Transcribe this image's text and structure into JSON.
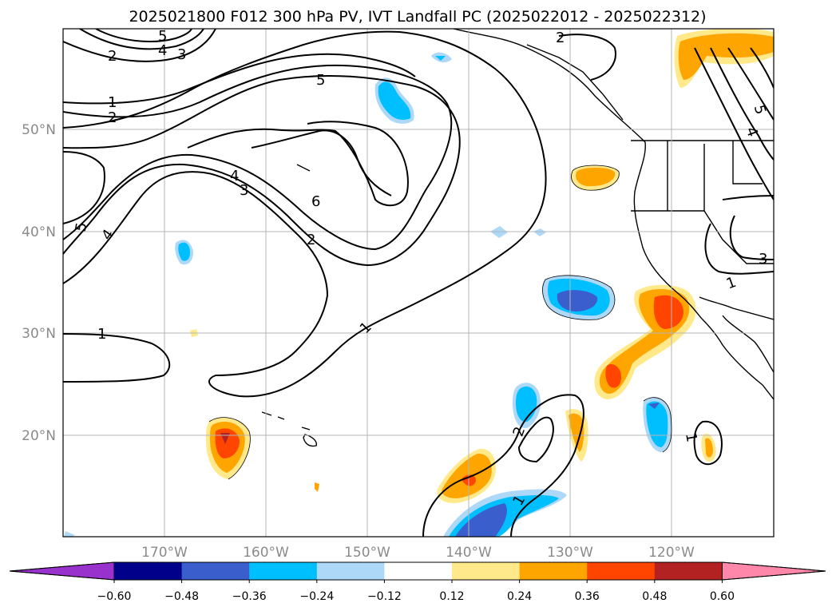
{
  "title": "2025021800 F012 300 hPa PV, IVT Landfall PC (2025022012 - 2025022312)",
  "axes": {
    "lon_labels": [
      "170°W",
      "160°W",
      "150°W",
      "140°W",
      "130°W",
      "120°W"
    ],
    "lat_labels": [
      "50°N",
      "40°N",
      "30°N",
      "20°N"
    ]
  },
  "colorbar": {
    "ticks": [
      "−0.60",
      "−0.48",
      "−0.36",
      "−0.24",
      "−0.12",
      "0.12",
      "0.24",
      "0.36",
      "0.48",
      "0.60"
    ],
    "colors": [
      "#9932cc",
      "#00008b",
      "#3a5fcd",
      "#00bfff",
      "#add8f8",
      "#ffffff",
      "#ffe98a",
      "#ffa500",
      "#ff4500",
      "#b22222",
      "#ff88aa"
    ]
  },
  "contour_labels": [
    "5",
    "4",
    "3",
    "2",
    "1",
    "2",
    "5",
    "2",
    "5",
    "4",
    "3",
    "2",
    "4",
    "3",
    "6",
    "2",
    "5",
    "4",
    "1",
    "1",
    "3",
    "1",
    "1",
    "2",
    "1"
  ]
}
